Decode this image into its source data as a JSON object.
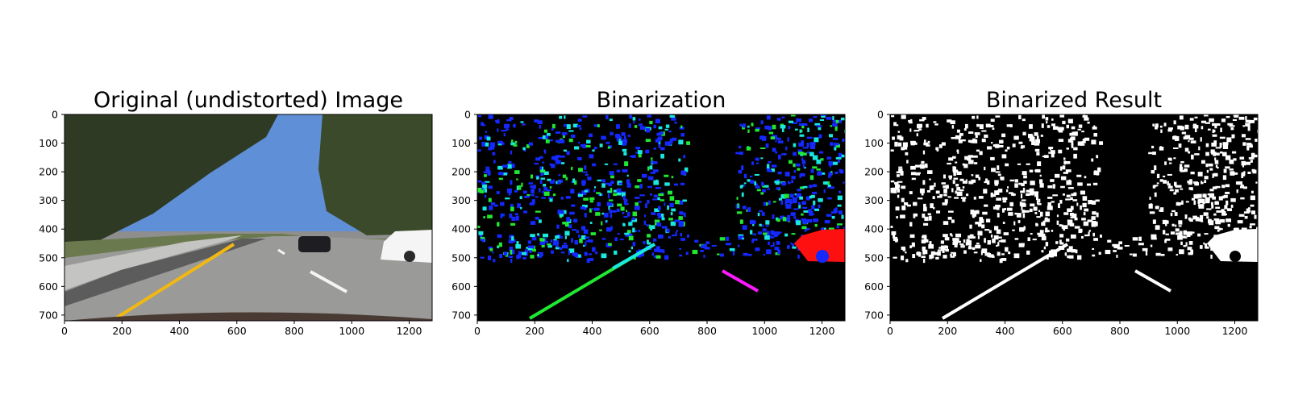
{
  "chart_data": [
    {
      "type": "image",
      "title": "Original (undistorted) Image",
      "content": "road-scene-photo",
      "xlim": [
        0,
        1280
      ],
      "ylim": [
        720,
        0
      ],
      "xticks": [
        0,
        200,
        400,
        600,
        800,
        1000,
        1200
      ],
      "yticks": [
        0,
        100,
        200,
        300,
        400,
        500,
        600,
        700
      ],
      "colors": {
        "sky": "#5f8fd6",
        "road": "#8e8e8e",
        "lane_line_yellow": "#f1b812",
        "lane_line_white": "#f4f4f4",
        "trees": "#2f3a24"
      }
    },
    {
      "type": "image",
      "title": "Binarization",
      "content": "color-coded-binary-mask",
      "xlim": [
        0,
        1280
      ],
      "ylim": [
        720,
        0
      ],
      "xticks": [
        0,
        200,
        400,
        600,
        800,
        1000,
        1200
      ],
      "yticks": [
        0,
        100,
        200,
        300,
        400,
        500,
        600,
        700
      ],
      "colors": {
        "background": "#000000",
        "blue": "#1428ff",
        "green": "#1fe832",
        "cyan": "#18e8e0",
        "magenta": "#ff19ff",
        "red": "#ff1010"
      }
    },
    {
      "type": "image",
      "title": "Binarized Result",
      "content": "binary-mask",
      "xlim": [
        0,
        1280
      ],
      "ylim": [
        720,
        0
      ],
      "xticks": [
        0,
        200,
        400,
        600,
        800,
        1000,
        1200
      ],
      "yticks": [
        0,
        100,
        200,
        300,
        400,
        500,
        600,
        700
      ],
      "colors": {
        "background": "#000000",
        "foreground": "#ffffff"
      }
    }
  ]
}
